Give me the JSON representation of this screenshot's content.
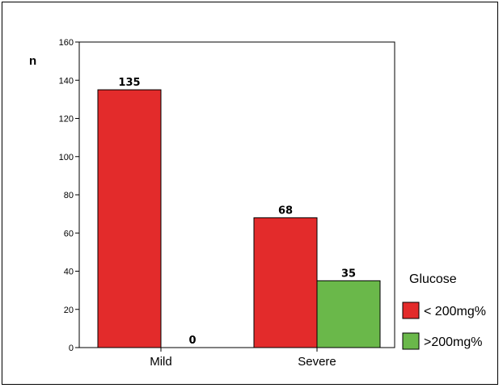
{
  "chart_data": {
    "type": "bar",
    "categories": [
      "Mild",
      "Severe"
    ],
    "series": [
      {
        "name": "< 200mg%",
        "values": [
          135,
          68
        ],
        "color": "#e32b2b"
      },
      {
        "name": ">200mg%",
        "values": [
          0,
          35
        ],
        "color": "#6ab84a"
      }
    ],
    "ylabel": "n",
    "ylim": [
      0,
      160
    ],
    "yticks": [
      0,
      20,
      40,
      60,
      80,
      100,
      120,
      140,
      160
    ],
    "legend": {
      "title": "Glucose",
      "position": "right"
    },
    "grid": false
  }
}
